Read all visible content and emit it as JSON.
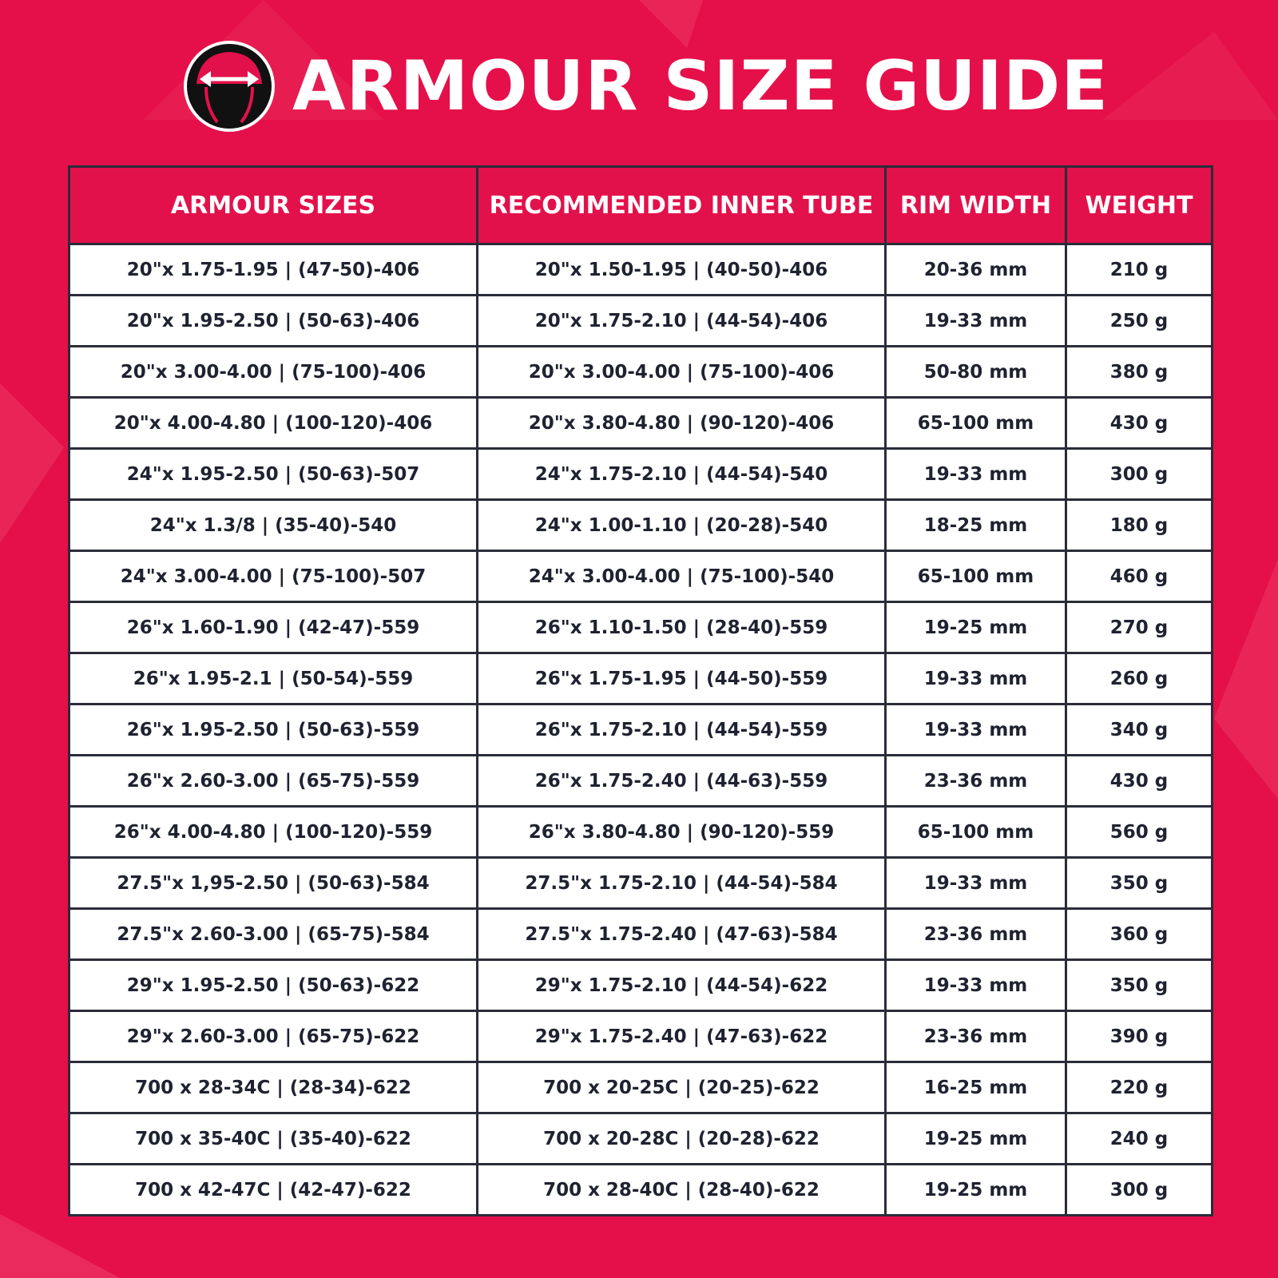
{
  "header": {
    "title": "ARMOUR SIZE GUIDE"
  },
  "table": {
    "columns": [
      "ARMOUR SIZES",
      "RECOMMENDED INNER TUBE",
      "RIM WIDTH",
      "WEIGHT"
    ],
    "rows": [
      [
        "20\"x 1.75-1.95 | (47-50)-406",
        "20\"x 1.50-1.95 | (40-50)-406",
        "20-36 mm",
        "210 g"
      ],
      [
        "20\"x 1.95-2.50 | (50-63)-406",
        "20\"x 1.75-2.10 | (44-54)-406",
        "19-33 mm",
        "250 g"
      ],
      [
        "20\"x 3.00-4.00 | (75-100)-406",
        "20\"x 3.00-4.00 | (75-100)-406",
        "50-80 mm",
        "380 g"
      ],
      [
        "20\"x 4.00-4.80 | (100-120)-406",
        "20\"x 3.80-4.80 | (90-120)-406",
        "65-100 mm",
        "430 g"
      ],
      [
        "24\"x 1.95-2.50 | (50-63)-507",
        "24\"x 1.75-2.10 | (44-54)-540",
        "19-33 mm",
        "300 g"
      ],
      [
        "24\"x 1.3/8 | (35-40)-540",
        "24\"x 1.00-1.10 | (20-28)-540",
        "18-25 mm",
        "180 g"
      ],
      [
        "24\"x 3.00-4.00 | (75-100)-507",
        "24\"x 3.00-4.00 | (75-100)-540",
        "65-100 mm",
        "460 g"
      ],
      [
        "26\"x 1.60-1.90 | (42-47)-559",
        "26\"x 1.10-1.50 | (28-40)-559",
        "19-25 mm",
        "270 g"
      ],
      [
        "26\"x 1.95-2.1 | (50-54)-559",
        "26\"x 1.75-1.95 | (44-50)-559",
        "19-33 mm",
        "260 g"
      ],
      [
        "26\"x 1.95-2.50 | (50-63)-559",
        "26\"x 1.75-2.10 | (44-54)-559",
        "19-33 mm",
        "340 g"
      ],
      [
        "26\"x 2.60-3.00 | (65-75)-559",
        "26\"x 1.75-2.40 | (44-63)-559",
        "23-36 mm",
        "430 g"
      ],
      [
        "26\"x 4.00-4.80 | (100-120)-559",
        "26\"x 3.80-4.80 | (90-120)-559",
        "65-100 mm",
        "560 g"
      ],
      [
        "27.5\"x 1,95-2.50 | (50-63)-584",
        "27.5\"x 1.75-2.10 | (44-54)-584",
        "19-33 mm",
        "350 g"
      ],
      [
        "27.5\"x 2.60-3.00 | (65-75)-584",
        "27.5\"x 1.75-2.40 | (47-63)-584",
        "23-36 mm",
        "360 g"
      ],
      [
        "29\"x 1.95-2.50 | (50-63)-622",
        "29\"x 1.75-2.10 | (44-54)-622",
        "19-33 mm",
        "350 g"
      ],
      [
        "29\"x 2.60-3.00 | (65-75)-622",
        "29\"x 1.75-2.40 | (47-63)-622",
        "23-36 mm",
        "390 g"
      ],
      [
        "700 x 28-34C | (28-34)-622",
        "700 x 20-25C | (20-25)-622",
        "16-25 mm",
        "220 g"
      ],
      [
        "700 x 35-40C | (35-40)-622",
        "700 x 20-28C | (20-28)-622",
        "19-25 mm",
        "240 g"
      ],
      [
        "700 x 42-47C | (42-47)-622",
        "700 x 28-40C | (28-40)-622",
        "19-25 mm",
        "300 g"
      ]
    ]
  }
}
